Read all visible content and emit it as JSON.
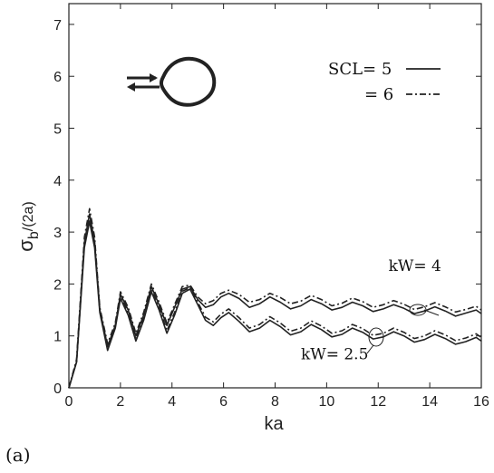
{
  "panel_label": "(a)",
  "chart_data": {
    "type": "line",
    "xlabel": "ka",
    "ylabel_main": "σ",
    "ylabel_sub": "b",
    "ylabel_rest": "/(2a)",
    "xlim": [
      0,
      16
    ],
    "ylim": [
      0,
      7.4
    ],
    "xticks": [
      0,
      2,
      4,
      6,
      8,
      10,
      12,
      14,
      16
    ],
    "yticks": [
      0,
      1,
      2,
      3,
      4,
      5,
      6,
      7
    ],
    "grid": false,
    "legend_position": "top-right",
    "legend": [
      {
        "label": "SCL= 5",
        "style": "solid"
      },
      {
        "label": "= 6",
        "style": "dash-dot"
      }
    ],
    "annotations": [
      {
        "text": "kW= 4",
        "x": 12.4,
        "y": 2.25
      },
      {
        "text": "kW= 2.5",
        "x": 9.0,
        "y": 0.55
      }
    ],
    "inset": "cross-section shape with incident and backscattered arrows",
    "series": [
      {
        "group": "kW= 4",
        "style": "solid",
        "x": [
          0,
          0.3,
          0.6,
          0.8,
          1.0,
          1.2,
          1.5,
          1.8,
          2.0,
          2.3,
          2.6,
          2.9,
          3.2,
          3.5,
          3.8,
          4.1,
          4.4,
          4.7,
          5.0,
          5.3,
          5.6,
          5.9,
          6.2,
          6.6,
          7.0,
          7.4,
          7.8,
          8.2,
          8.6,
          9.0,
          9.4,
          9.8,
          10.2,
          10.6,
          11.0,
          11.4,
          11.8,
          12.2,
          12.6,
          13.0,
          13.4,
          13.8,
          14.2,
          14.6,
          15.0,
          15.4,
          15.8,
          16.0
        ],
        "y": [
          0,
          0.5,
          2.8,
          3.35,
          2.8,
          1.5,
          0.8,
          1.2,
          1.8,
          1.5,
          1.0,
          1.4,
          1.95,
          1.6,
          1.2,
          1.55,
          1.9,
          1.95,
          1.7,
          1.55,
          1.6,
          1.75,
          1.82,
          1.72,
          1.55,
          1.62,
          1.75,
          1.65,
          1.52,
          1.58,
          1.7,
          1.62,
          1.5,
          1.55,
          1.65,
          1.58,
          1.47,
          1.52,
          1.6,
          1.53,
          1.43,
          1.48,
          1.56,
          1.48,
          1.38,
          1.44,
          1.5,
          1.43
        ]
      },
      {
        "group": "kW= 4",
        "style": "dash-dot",
        "x": [
          0,
          0.3,
          0.6,
          0.8,
          1.0,
          1.2,
          1.5,
          1.8,
          2.0,
          2.3,
          2.6,
          2.9,
          3.2,
          3.5,
          3.8,
          4.1,
          4.4,
          4.7,
          5.0,
          5.3,
          5.6,
          5.9,
          6.2,
          6.6,
          7.0,
          7.4,
          7.8,
          8.2,
          8.6,
          9.0,
          9.4,
          9.8,
          10.2,
          10.6,
          11.0,
          11.4,
          11.8,
          12.2,
          12.6,
          13.0,
          13.4,
          13.8,
          14.2,
          14.6,
          15.0,
          15.4,
          15.8,
          16.0
        ],
        "y": [
          0,
          0.55,
          2.9,
          3.45,
          2.9,
          1.55,
          0.85,
          1.25,
          1.85,
          1.55,
          1.05,
          1.45,
          2.0,
          1.65,
          1.25,
          1.6,
          1.95,
          1.98,
          1.75,
          1.62,
          1.68,
          1.82,
          1.88,
          1.8,
          1.65,
          1.7,
          1.82,
          1.74,
          1.62,
          1.67,
          1.78,
          1.7,
          1.58,
          1.63,
          1.73,
          1.66,
          1.55,
          1.6,
          1.68,
          1.61,
          1.51,
          1.56,
          1.64,
          1.56,
          1.46,
          1.51,
          1.57,
          1.5
        ]
      },
      {
        "group": "kW= 2.5",
        "style": "solid",
        "x": [
          0,
          0.3,
          0.6,
          0.8,
          1.0,
          1.2,
          1.5,
          1.8,
          2.0,
          2.3,
          2.6,
          2.9,
          3.2,
          3.5,
          3.8,
          4.1,
          4.4,
          4.7,
          5.0,
          5.3,
          5.6,
          5.9,
          6.2,
          6.6,
          7.0,
          7.4,
          7.8,
          8.2,
          8.6,
          9.0,
          9.4,
          9.8,
          10.2,
          10.6,
          11.0,
          11.4,
          11.8,
          12.2,
          12.6,
          13.0,
          13.4,
          13.8,
          14.2,
          14.6,
          15.0,
          15.4,
          15.8,
          16.0
        ],
        "y": [
          0,
          0.5,
          2.7,
          3.2,
          2.7,
          1.45,
          0.72,
          1.15,
          1.72,
          1.4,
          0.9,
          1.3,
          1.85,
          1.5,
          1.05,
          1.4,
          1.82,
          1.9,
          1.6,
          1.3,
          1.2,
          1.35,
          1.45,
          1.28,
          1.08,
          1.15,
          1.3,
          1.18,
          1.02,
          1.08,
          1.22,
          1.12,
          0.98,
          1.03,
          1.15,
          1.07,
          0.94,
          0.98,
          1.08,
          1.0,
          0.88,
          0.93,
          1.03,
          0.95,
          0.84,
          0.89,
          0.97,
          0.9
        ]
      },
      {
        "group": "kW= 2.5",
        "style": "dash-dot",
        "x": [
          0,
          0.3,
          0.6,
          0.8,
          1.0,
          1.2,
          1.5,
          1.8,
          2.0,
          2.3,
          2.6,
          2.9,
          3.2,
          3.5,
          3.8,
          4.1,
          4.4,
          4.7,
          5.0,
          5.3,
          5.6,
          5.9,
          6.2,
          6.6,
          7.0,
          7.4,
          7.8,
          8.2,
          8.6,
          9.0,
          9.4,
          9.8,
          10.2,
          10.6,
          11.0,
          11.4,
          11.8,
          12.2,
          12.6,
          13.0,
          13.4,
          13.8,
          14.2,
          14.6,
          15.0,
          15.4,
          15.8,
          16.0
        ],
        "y": [
          0,
          0.52,
          2.8,
          3.3,
          2.8,
          1.5,
          0.78,
          1.2,
          1.78,
          1.45,
          0.95,
          1.35,
          1.9,
          1.55,
          1.1,
          1.45,
          1.86,
          1.93,
          1.65,
          1.36,
          1.27,
          1.42,
          1.52,
          1.35,
          1.15,
          1.22,
          1.37,
          1.25,
          1.09,
          1.15,
          1.29,
          1.19,
          1.05,
          1.1,
          1.22,
          1.14,
          1.01,
          1.05,
          1.15,
          1.07,
          0.95,
          1.0,
          1.1,
          1.02,
          0.91,
          0.96,
          1.04,
          0.97
        ]
      }
    ]
  }
}
